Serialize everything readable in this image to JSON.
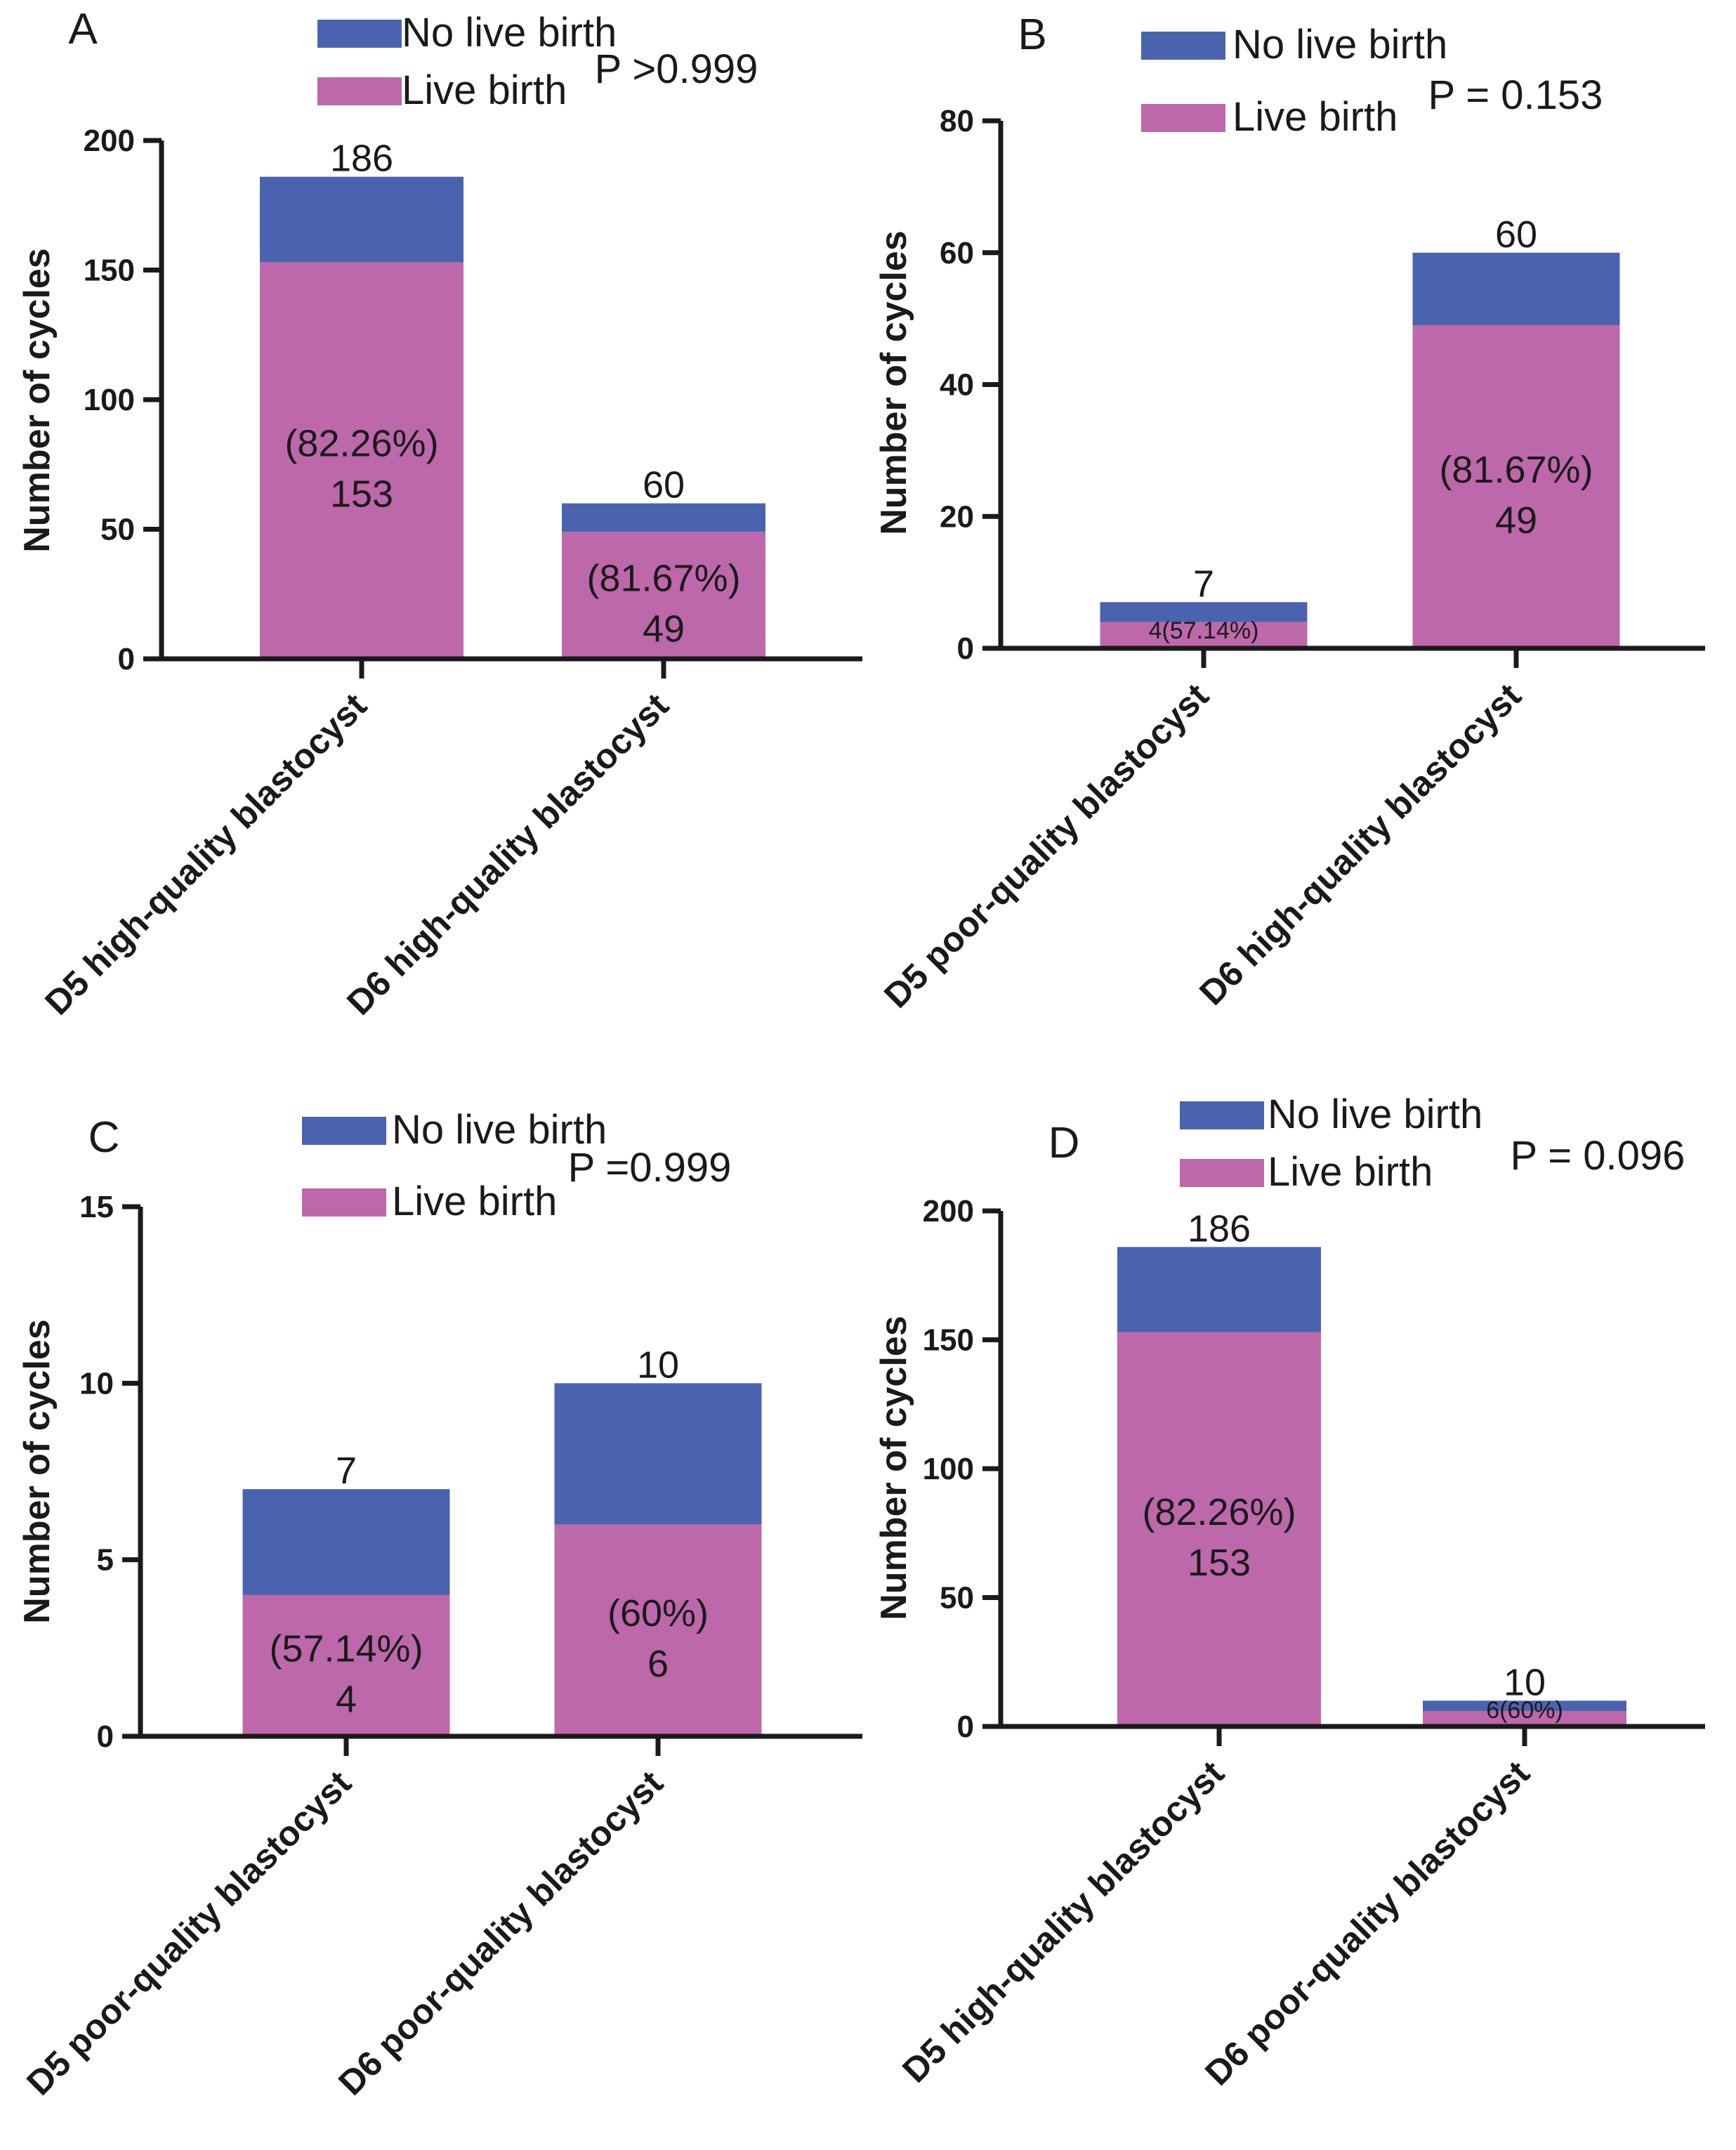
{
  "colors": {
    "no_live_birth": "#4a63ae",
    "live_birth": "#bd68aa",
    "axis": "#1a1a1a"
  },
  "chart_data": [
    {
      "type": "bar",
      "stacked": true,
      "panel": "A",
      "legend": [
        "No live birth",
        "Live birth"
      ],
      "pvalue": "P >0.999",
      "ylabel": "Number of cycles",
      "ylim": [
        0,
        200
      ],
      "yticks": [
        "0",
        "50",
        "100",
        "150",
        "200"
      ],
      "categories": [
        "D5 high-quality blastocyst",
        "D6 high-quality blastocyst"
      ],
      "series": [
        {
          "name": "Live birth",
          "values": [
            153,
            49
          ]
        },
        {
          "name": "No live birth",
          "values": [
            33,
            11
          ]
        }
      ],
      "totals": [
        186,
        60
      ],
      "totals_labels": [
        "186",
        "60"
      ],
      "percent_labels": [
        "(82.26%)",
        "(81.67%)"
      ],
      "count_labels": [
        "153",
        "49"
      ],
      "combined_labels": [
        "",
        ""
      ]
    },
    {
      "type": "bar",
      "stacked": true,
      "panel": "B",
      "legend": [
        "No live birth",
        "Live birth"
      ],
      "pvalue": "P = 0.153",
      "ylabel": "Number of cycles",
      "ylim": [
        0,
        80
      ],
      "yticks": [
        "0",
        "20",
        "40",
        "60",
        "80"
      ],
      "categories": [
        "D5 poor-quality blastocyst",
        "D6 high-quality blastocyst"
      ],
      "series": [
        {
          "name": "Live birth",
          "values": [
            4,
            49
          ]
        },
        {
          "name": "No live birth",
          "values": [
            3,
            11
          ]
        }
      ],
      "totals": [
        7,
        60
      ],
      "totals_labels": [
        "7",
        "60"
      ],
      "percent_labels": [
        "",
        "(81.67%)"
      ],
      "count_labels": [
        "",
        "49"
      ],
      "combined_labels": [
        "4(57.14%)",
        ""
      ]
    },
    {
      "type": "bar",
      "stacked": true,
      "panel": "C",
      "legend": [
        "No live birth",
        "Live birth"
      ],
      "pvalue": "P =0.999",
      "ylabel": "Number of cycles",
      "ylim": [
        0,
        15
      ],
      "yticks": [
        "0",
        "5",
        "10",
        "15"
      ],
      "categories": [
        "D5 poor-quality blastocyst",
        "D6 poor-quality blastocyst"
      ],
      "series": [
        {
          "name": "Live birth",
          "values": [
            4,
            6
          ]
        },
        {
          "name": "No live birth",
          "values": [
            3,
            4
          ]
        }
      ],
      "totals": [
        7,
        10
      ],
      "totals_labels": [
        "7",
        "10"
      ],
      "percent_labels": [
        "(57.14%)",
        "(60%)"
      ],
      "count_labels": [
        "4",
        "6"
      ],
      "combined_labels": [
        "",
        ""
      ]
    },
    {
      "type": "bar",
      "stacked": true,
      "panel": "D",
      "legend": [
        "No live birth",
        "Live birth"
      ],
      "pvalue": "P = 0.096",
      "ylabel": "Number of cycles",
      "ylim": [
        0,
        200
      ],
      "yticks": [
        "0",
        "50",
        "100",
        "150",
        "200"
      ],
      "categories": [
        "D5 high-quality blastocyst",
        "D6 poor-quality blastocyst"
      ],
      "series": [
        {
          "name": "Live birth",
          "values": [
            153,
            6
          ]
        },
        {
          "name": "No live birth",
          "values": [
            33,
            4
          ]
        }
      ],
      "totals": [
        186,
        10
      ],
      "totals_labels": [
        "186",
        "10"
      ],
      "percent_labels": [
        "(82.26%)",
        ""
      ],
      "count_labels": [
        "153",
        ""
      ],
      "combined_labels": [
        "",
        "6(60%)"
      ]
    }
  ]
}
